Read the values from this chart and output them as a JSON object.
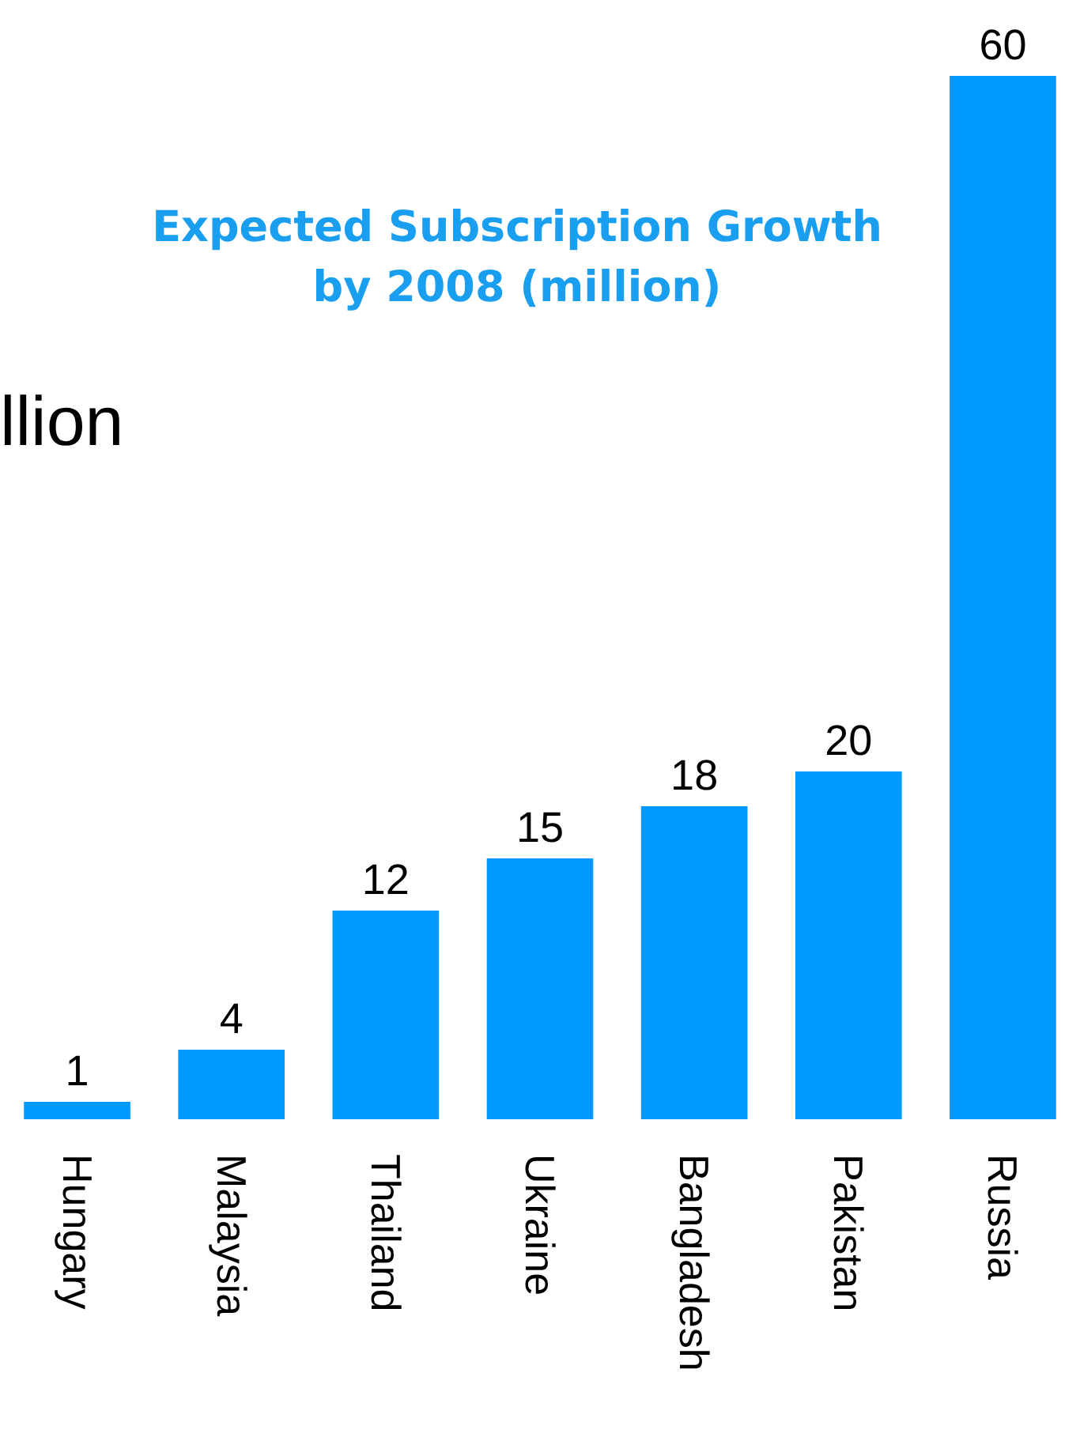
{
  "chart_data": {
    "type": "bar",
    "title": "Expected Subscription Growth\nby 2008 (million)",
    "categories": [
      "Hungary",
      "Malaysia",
      "Thailand",
      "Ukraine",
      "Bangladesh",
      "Pakistan",
      "Russia"
    ],
    "values": [
      1,
      4,
      12,
      15,
      18,
      20,
      60
    ],
    "color": "#0099ff",
    "data_labels": true,
    "annotations": [
      "llion"
    ]
  }
}
